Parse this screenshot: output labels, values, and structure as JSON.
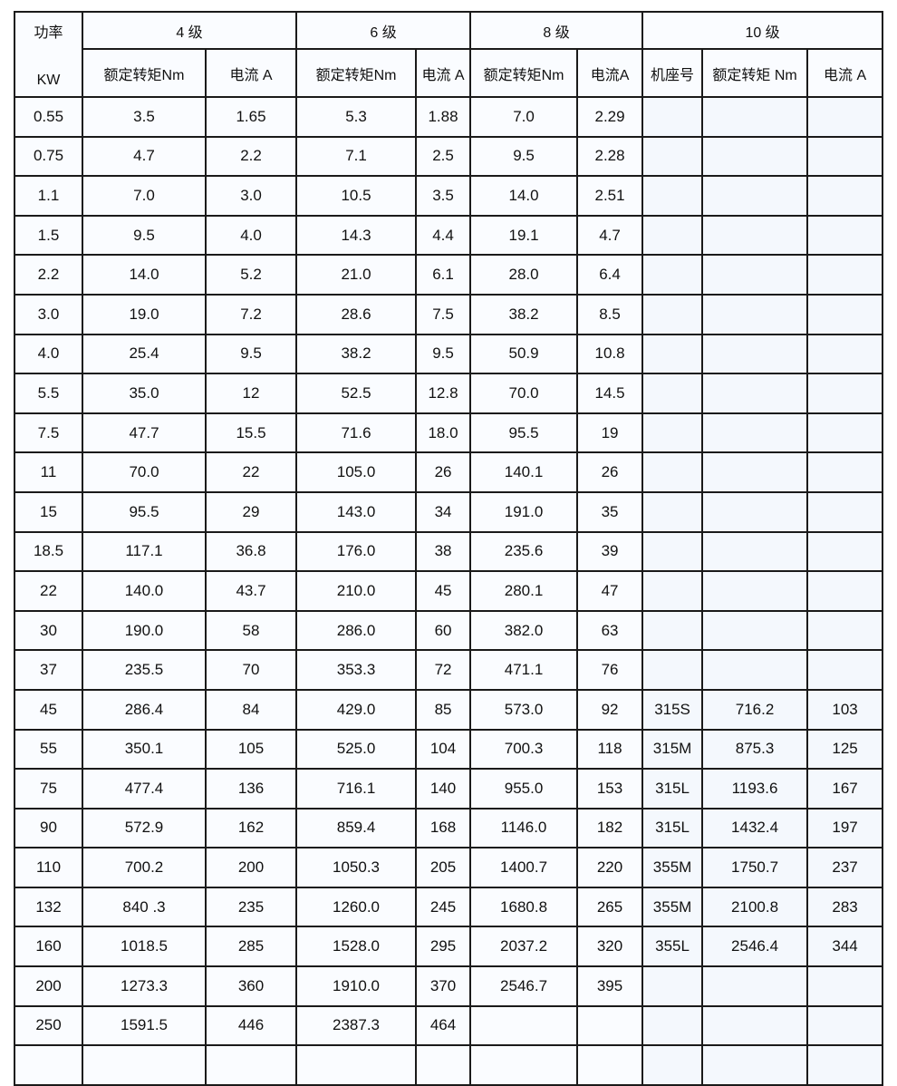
{
  "header": {
    "power_label": "功率",
    "power_unit": "KW",
    "groups": [
      "4 级",
      "6 级",
      "8 级",
      "10 级"
    ],
    "sub": [
      "额定转矩Nm",
      "电流 A",
      "额定转矩Nm",
      "电流 A",
      "额定转矩Nm",
      "电流A",
      "机座号",
      "额定转矩 Nm",
      "电流 A"
    ]
  },
  "rows": [
    [
      "0.55",
      "3.5",
      "1.65",
      "5.3",
      "1.88",
      "7.0",
      "2.29",
      "",
      "",
      ""
    ],
    [
      "0.75",
      "4.7",
      "2.2",
      "7.1",
      "2.5",
      "9.5",
      "2.28",
      "",
      "",
      ""
    ],
    [
      "1.1",
      "7.0",
      "3.0",
      "10.5",
      "3.5",
      "14.0",
      "2.51",
      "",
      "",
      ""
    ],
    [
      "1.5",
      "9.5",
      "4.0",
      "14.3",
      "4.4",
      "19.1",
      "4.7",
      "",
      "",
      ""
    ],
    [
      "2.2",
      "14.0",
      "5.2",
      "21.0",
      "6.1",
      "28.0",
      "6.4",
      "",
      "",
      ""
    ],
    [
      "3.0",
      "19.0",
      "7.2",
      "28.6",
      "7.5",
      "38.2",
      "8.5",
      "",
      "",
      ""
    ],
    [
      "4.0",
      "25.4",
      "9.5",
      "38.2",
      "9.5",
      "50.9",
      "10.8",
      "",
      "",
      ""
    ],
    [
      "5.5",
      "35.0",
      "12",
      "52.5",
      "12.8",
      "70.0",
      "14.5",
      "",
      "",
      ""
    ],
    [
      "7.5",
      "47.7",
      "15.5",
      "71.6",
      "18.0",
      "95.5",
      "19",
      "",
      "",
      ""
    ],
    [
      "11",
      "70.0",
      "22",
      "105.0",
      "26",
      "140.1",
      "26",
      "",
      "",
      ""
    ],
    [
      "15",
      "95.5",
      "29",
      "143.0",
      "34",
      "191.0",
      "35",
      "",
      "",
      ""
    ],
    [
      "18.5",
      "117.1",
      "36.8",
      "176.0",
      "38",
      "235.6",
      "39",
      "",
      "",
      ""
    ],
    [
      "22",
      "140.0",
      "43.7",
      "210.0",
      "45",
      "280.1",
      "47",
      "",
      "",
      ""
    ],
    [
      "30",
      "190.0",
      "58",
      "286.0",
      "60",
      "382.0",
      "63",
      "",
      "",
      ""
    ],
    [
      "37",
      "235.5",
      "70",
      "353.3",
      "72",
      "471.1",
      "76",
      "",
      "",
      ""
    ],
    [
      "45",
      "286.4",
      "84",
      "429.0",
      "85",
      "573.0",
      "92",
      "315S",
      "716.2",
      "103"
    ],
    [
      "55",
      "350.1",
      "105",
      "525.0",
      "104",
      "700.3",
      "118",
      "315M",
      "875.3",
      "125"
    ],
    [
      "75",
      "477.4",
      "136",
      "716.1",
      "140",
      "955.0",
      "153",
      "315L",
      "1193.6",
      "167"
    ],
    [
      "90",
      "572.9",
      "162",
      "859.4",
      "168",
      "1146.0",
      "182",
      "315L",
      "1432.4",
      "197"
    ],
    [
      "110",
      "700.2",
      "200",
      "1050.3",
      "205",
      "1400.7",
      "220",
      "355M",
      "1750.7",
      "237"
    ],
    [
      "132",
      "840 .3",
      "235",
      "1260.0",
      "245",
      "1680.8",
      "265",
      "355M",
      "2100.8",
      "283"
    ],
    [
      "160",
      "1018.5",
      "285",
      "1528.0",
      "295",
      "2037.2",
      "320",
      "355L",
      "2546.4",
      "344"
    ],
    [
      "200",
      "1273.3",
      "360",
      "1910.0",
      "370",
      "2546.7",
      "395",
      "",
      "",
      ""
    ],
    [
      "250",
      "1591.5",
      "446",
      "2387.3",
      "464",
      "",
      "",
      "",
      "",
      ""
    ],
    [
      "",
      "",
      "",
      "",
      "",
      "",
      "",
      "",
      "",
      ""
    ]
  ]
}
